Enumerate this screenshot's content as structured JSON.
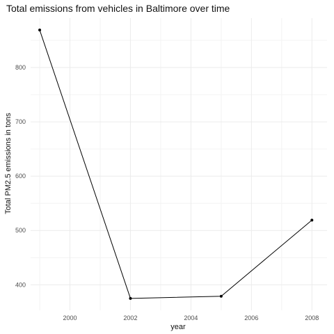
{
  "chart_data": {
    "type": "line",
    "title": "Total emissions from vehicles in Baltimore over time",
    "xlabel": "year",
    "ylabel": "Total PM2.5 emissions in tons",
    "x": [
      1999,
      2002,
      2005,
      2008
    ],
    "series": [
      {
        "values": [
          869,
          375,
          379,
          519
        ]
      }
    ],
    "xlim": [
      1998.7,
      2008.5
    ],
    "ylim": [
      353,
      891
    ],
    "x_ticks": [
      2000,
      2002,
      2004,
      2006,
      2008
    ],
    "y_ticks": [
      400,
      500,
      600,
      700,
      800
    ],
    "grid": true,
    "legend": "none",
    "colors": {
      "line": "#000000",
      "grid": "#ebebeb",
      "text": "#4d4d4d"
    }
  }
}
